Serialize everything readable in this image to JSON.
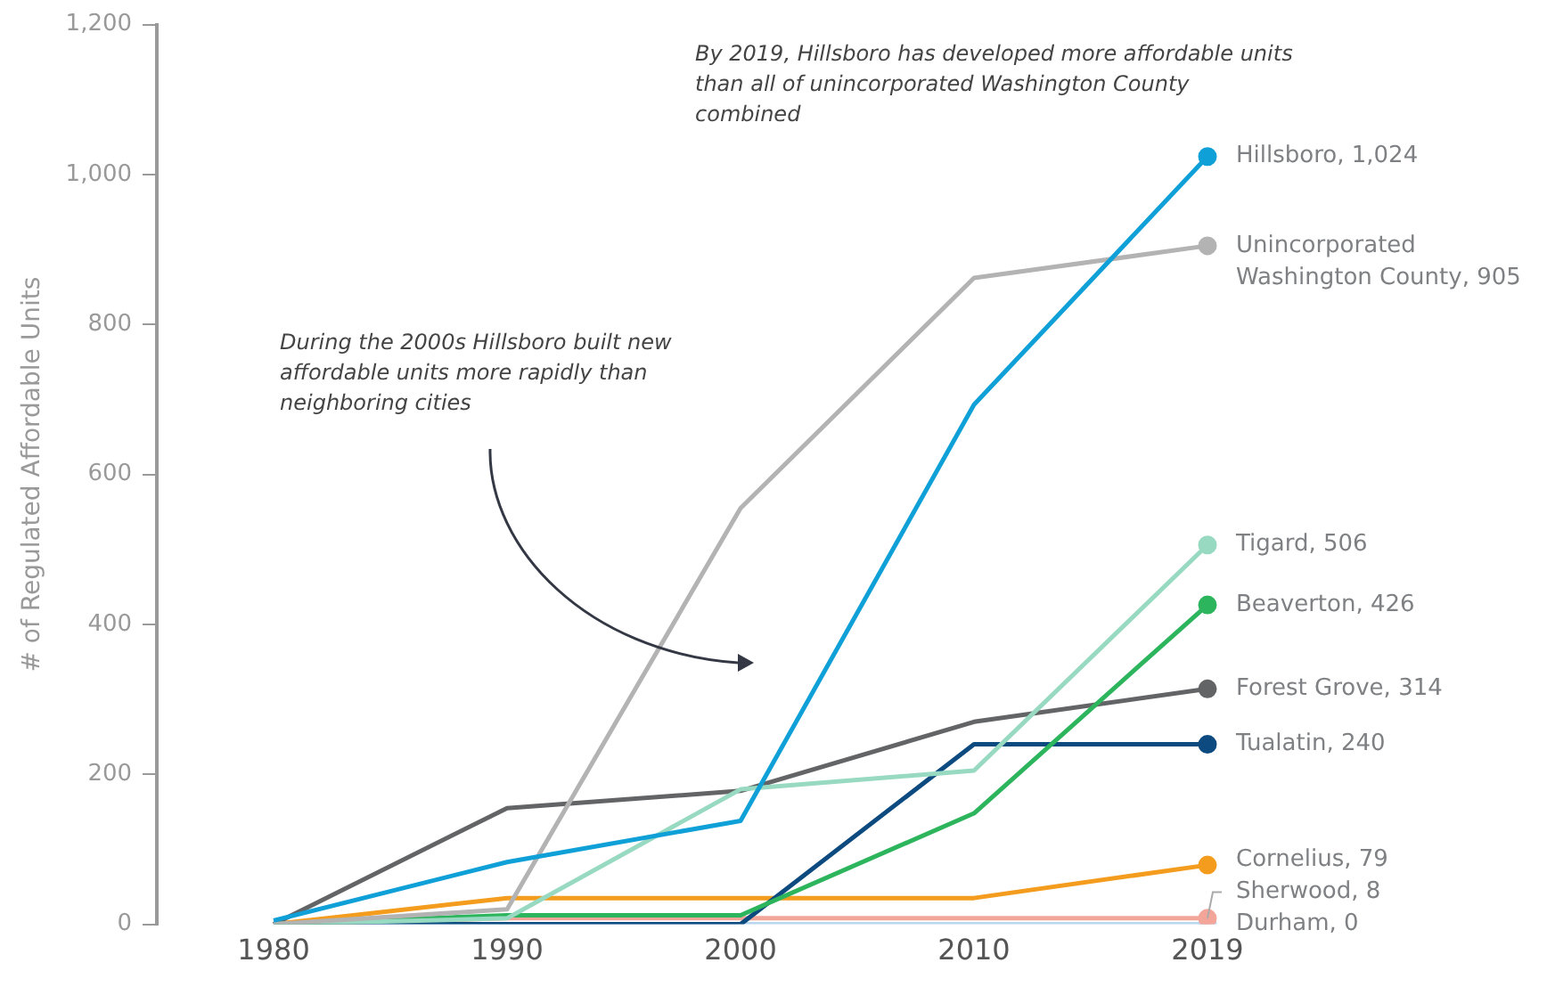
{
  "chart_data": {
    "type": "line",
    "ylabel": "# of Regulated Affordable Units",
    "categories": [
      "1980",
      "1990",
      "2000",
      "2010",
      "2019"
    ],
    "ylim": [
      0,
      1200
    ],
    "yticks": [
      0,
      {
        "value": 200,
        "label": "200"
      },
      {
        "value": 400,
        "label": "400"
      },
      {
        "value": 600,
        "label": "600"
      },
      {
        "value": 800,
        "label": "800"
      },
      {
        "value": 1000,
        "label": "1,000"
      },
      {
        "value": 1200,
        "label": "1,200"
      }
    ],
    "grid": false,
    "legend": false,
    "line_style": "solid",
    "annotations": [
      "By 2019, Hillsboro has developed more affordable units than all of unincorporated Washington County combined",
      "During the 2000s Hillsboro built new affordable units more rapidly than neighboring cities"
    ],
    "series": [
      {
        "name": "Durham,",
        "color": "#b8d6f0",
        "values": [
          0,
          0,
          0,
          0,
          0
        ],
        "value_labels": [
          null,
          null,
          null,
          null,
          "0"
        ]
      },
      {
        "name": "Sherwood,",
        "color": "#f4a59a",
        "values": [
          0,
          8,
          8,
          8,
          8
        ],
        "value_labels": [
          null,
          null,
          null,
          null,
          "8"
        ]
      },
      {
        "name": "Cornelius,",
        "color": "#f39c1d",
        "values": [
          0,
          35,
          35,
          35,
          79
        ],
        "value_labels": [
          null,
          null,
          null,
          null,
          "79"
        ]
      },
      {
        "name": "Tualatin,",
        "color": "#0c4a7f",
        "values": [
          0,
          0,
          0,
          240,
          240
        ],
        "value_labels": [
          null,
          null,
          null,
          null,
          "240"
        ]
      },
      {
        "name": "Forest Grove,",
        "color": "#636466",
        "values": [
          0,
          155,
          178,
          270,
          314
        ],
        "value_labels": [
          null,
          null,
          null,
          null,
          "314"
        ]
      },
      {
        "name": "Beaverton,",
        "color": "#2db55d",
        "values": [
          0,
          12,
          12,
          148,
          426
        ],
        "value_labels": [
          null,
          null,
          null,
          null,
          "426"
        ]
      },
      {
        "name": "Tigard,",
        "color": "#98d9c1",
        "values": [
          0,
          8,
          180,
          205,
          506
        ],
        "value_labels": [
          null,
          null,
          null,
          null,
          "506"
        ]
      },
      {
        "name": "Unincorporated Washington County,",
        "color": "#b3b3b3",
        "values": [
          0,
          20,
          555,
          862,
          905
        ],
        "value_labels": [
          null,
          null,
          null,
          null,
          "905"
        ]
      },
      {
        "name": "Hillsboro,",
        "color": "#0fa0d8",
        "values": [
          5,
          83,
          138,
          693,
          1024
        ],
        "value_labels": [
          null,
          null,
          null,
          null,
          "1,024"
        ]
      }
    ]
  }
}
